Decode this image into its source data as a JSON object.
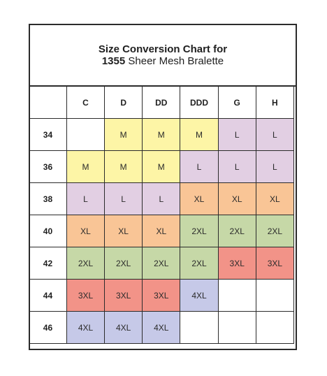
{
  "title": {
    "line1": "Size Conversion Chart for",
    "model_number": "1355",
    "product_name": "Sheer Mesh Bralette"
  },
  "colors": {
    "M": "#fdf5a6",
    "L": "#e2cfe3",
    "XL": "#f9c596",
    "2XL": "#c6d8a7",
    "3XL": "#f29388",
    "4XL": "#c6c9e8",
    "empty": "#ffffff"
  },
  "cups": [
    "C",
    "D",
    "DD",
    "DDD",
    "G",
    "H"
  ],
  "rows": [
    {
      "band": "34",
      "sizes": [
        "",
        "M",
        "M",
        "M",
        "L",
        "L"
      ]
    },
    {
      "band": "36",
      "sizes": [
        "M",
        "M",
        "M",
        "L",
        "L",
        "L"
      ]
    },
    {
      "band": "38",
      "sizes": [
        "L",
        "L",
        "L",
        "XL",
        "XL",
        "XL"
      ]
    },
    {
      "band": "40",
      "sizes": [
        "XL",
        "XL",
        "XL",
        "2XL",
        "2XL",
        "2XL"
      ]
    },
    {
      "band": "42",
      "sizes": [
        "2XL",
        "2XL",
        "2XL",
        "2XL",
        "3XL",
        "3XL"
      ]
    },
    {
      "band": "44",
      "sizes": [
        "3XL",
        "3XL",
        "3XL",
        "4XL",
        "",
        ""
      ]
    },
    {
      "band": "46",
      "sizes": [
        "4XL",
        "4XL",
        "4XL",
        "",
        "",
        ""
      ]
    }
  ]
}
